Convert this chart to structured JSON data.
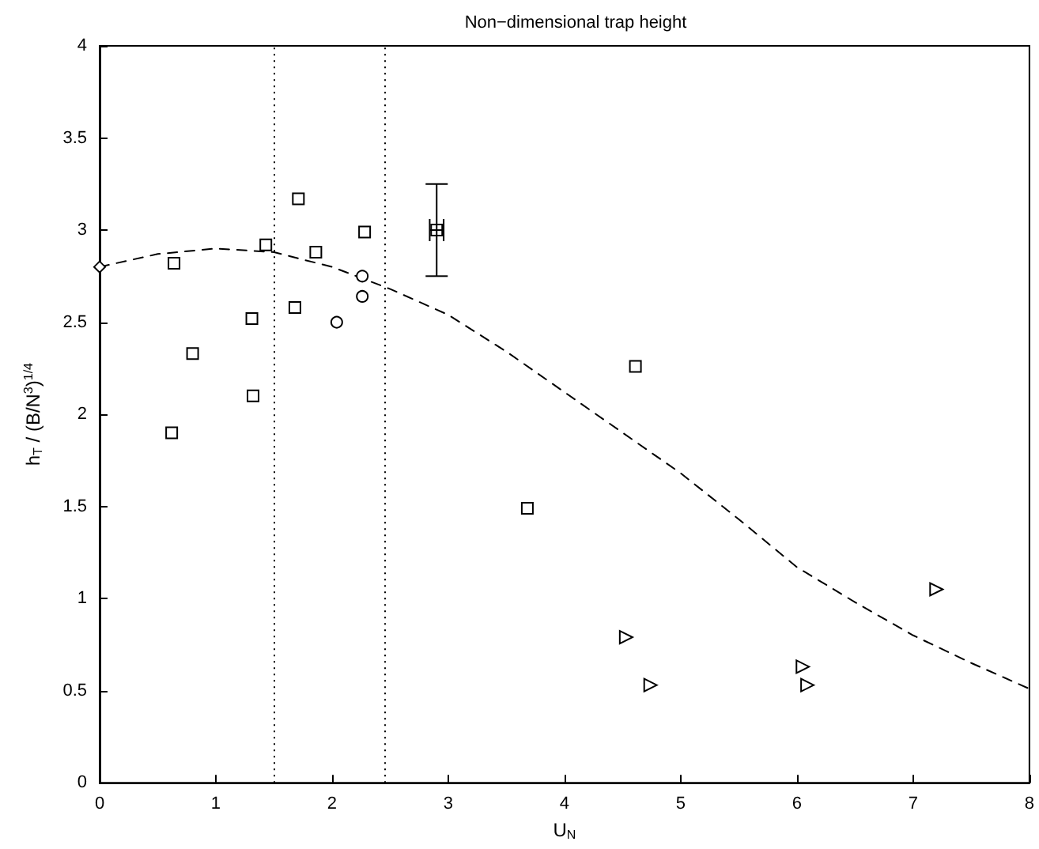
{
  "chart_data": {
    "type": "scatter",
    "title": "Non−dimensional trap height",
    "xlabel": "U$_{N}$",
    "ylabel": "h$_{T}$ / (B/N$^{3}$)$^{1/4}$",
    "xlim": [
      0,
      8
    ],
    "xticks": [
      0,
      1,
      2,
      3,
      4,
      5,
      6,
      7,
      8
    ],
    "ylim": [
      0,
      4
    ],
    "yticks": [
      0,
      0.5,
      1,
      1.5,
      2,
      2.5,
      3,
      3.5,
      4
    ],
    "grid": false,
    "ref_lines": [
      {
        "axis": "x",
        "value": 1.5,
        "color": "#000000",
        "line_style": "dotted"
      },
      {
        "axis": "x",
        "value": 2.45,
        "color": "#000000",
        "line_style": "dotted"
      }
    ],
    "series": [
      {
        "type": "line",
        "color": "#000000",
        "marker": "none",
        "line_style": "dashed",
        "x": [
          0,
          0.5,
          1,
          1.5,
          2,
          2.5,
          3,
          3.5,
          4,
          4.5,
          5,
          5.5,
          6,
          6.5,
          7,
          7.5,
          8
        ],
        "values": [
          2.8,
          2.87,
          2.9,
          2.88,
          2.8,
          2.68,
          2.54,
          2.34,
          2.12,
          1.9,
          1.68,
          1.43,
          1.17,
          0.98,
          0.8,
          0.65,
          0.51
        ]
      },
      {
        "color": "#000000",
        "marker": "square",
        "x": [
          0.64,
          1.71,
          2.28,
          1.68,
          0.62
        ],
        "values": [
          2.82,
          3.17,
          2.99,
          2.58,
          1.9
        ]
      },
      {
        "color": "#000000",
        "marker": "square",
        "x": [
          1.43,
          1.86,
          1.31,
          0.8,
          1.32,
          4.61,
          3.68
        ],
        "values": [
          2.92,
          2.88,
          2.52,
          2.33,
          2.1,
          2.26,
          1.49
        ]
      },
      {
        "color": "#000000",
        "marker": "circle",
        "x": [
          2.26,
          2.26,
          2.04
        ],
        "values": [
          2.75,
          2.64,
          2.5
        ]
      },
      {
        "color": "#000000",
        "marker": "triangle",
        "x": [
          7.2,
          4.53,
          4.74,
          6.05,
          6.09
        ],
        "values": [
          1.05,
          0.79,
          0.53,
          0.63,
          0.53
        ]
      },
      {
        "color": "#000000",
        "marker": "diamond",
        "x": [
          0
        ],
        "values": [
          2.8
        ]
      },
      {
        "color": "#000000",
        "marker": "square",
        "x": [
          2.9
        ],
        "values": [
          3.0
        ],
        "errors": [
          [
            2.75,
            3.25
          ]
        ],
        "xerrors": [
          0.06
        ]
      }
    ]
  }
}
